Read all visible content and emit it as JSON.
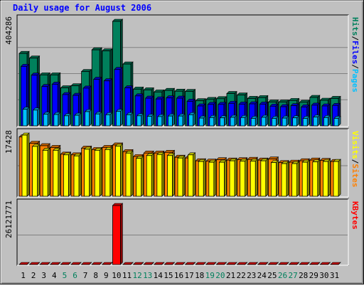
{
  "title": "Daily usage for August 2006",
  "colors": {
    "frame_bg": "#c0c0c0",
    "panel_bg": "#c0c0c0",
    "title": "#0000ff",
    "hits": "#00805c",
    "files": "#0000ff",
    "pages": "#00c0ff",
    "visits": "#ffff00",
    "sites": "#ff8000",
    "kbytes": "#ff0000",
    "weekday": "#000000",
    "weekend": "#00805c",
    "slash": "#000000"
  },
  "chart_data": [
    {
      "type": "bar",
      "panel": "hits-files-pages",
      "ymax_label": "404286",
      "ylim": [
        0,
        404286
      ],
      "legend": [
        "Pages",
        "Files",
        "Hits"
      ],
      "x": [
        1,
        2,
        3,
        4,
        5,
        6,
        7,
        8,
        9,
        10,
        11,
        12,
        13,
        14,
        15,
        16,
        17,
        18,
        19,
        20,
        21,
        22,
        23,
        24,
        25,
        26,
        27,
        28,
        29,
        30,
        31
      ],
      "series": [
        {
          "name": "Hits",
          "values": [
            280000,
            262000,
            197000,
            197000,
            147000,
            155000,
            210000,
            294000,
            290000,
            404286,
            239000,
            142000,
            139000,
            131000,
            137000,
            134000,
            133000,
            97000,
            102000,
            105000,
            125000,
            119000,
            106000,
            109000,
            92000,
            92000,
            98000,
            91000,
            110000,
            99000,
            106000
          ]
        },
        {
          "name": "Files",
          "values": [
            230000,
            196000,
            152000,
            161000,
            121000,
            118000,
            146000,
            180000,
            174000,
            218000,
            147000,
            116000,
            107000,
            104000,
            108000,
            107000,
            95000,
            77000,
            83000,
            83000,
            87000,
            84000,
            85000,
            84000,
            76000,
            74000,
            78000,
            73000,
            80000,
            77000,
            79000
          ]
        },
        {
          "name": "Pages",
          "values": [
            64000,
            61000,
            45000,
            44000,
            39000,
            41000,
            55000,
            46000,
            43000,
            56000,
            43000,
            39000,
            37000,
            36000,
            38000,
            38000,
            43000,
            30000,
            32000,
            31000,
            33000,
            32000,
            29000,
            33000,
            29000,
            30000,
            31000,
            29000,
            34000,
            32000,
            29000
          ]
        }
      ]
    },
    {
      "type": "bar",
      "panel": "sites-visits",
      "ymax_label": "17428",
      "ylim": [
        0,
        17428
      ],
      "legend": [
        "Sites",
        "Visits"
      ],
      "x": [
        1,
        2,
        3,
        4,
        5,
        6,
        7,
        8,
        9,
        10,
        11,
        12,
        13,
        14,
        15,
        16,
        17,
        18,
        19,
        20,
        21,
        22,
        23,
        24,
        25,
        26,
        27,
        28,
        29,
        30,
        31
      ],
      "series": [
        {
          "name": "Sites",
          "values": [
            16900,
            15100,
            14400,
            13900,
            12000,
            11800,
            13700,
            13300,
            13900,
            14600,
            12700,
            11300,
            12300,
            12300,
            12500,
            11100,
            10900,
            10100,
            10000,
            10400,
            10300,
            10400,
            10500,
            10300,
            10600,
            9600,
            9700,
            10100,
            10300,
            10200,
            9900
          ]
        },
        {
          "name": "Visits",
          "values": [
            17428,
            14200,
            13100,
            13100,
            11800,
            11500,
            13400,
            13100,
            13300,
            14300,
            12300,
            10800,
            11600,
            11900,
            11600,
            10900,
            11800,
            9900,
            9700,
            9700,
            10100,
            10000,
            10000,
            10100,
            9600,
            9300,
            9300,
            9700,
            9800,
            9900,
            9900
          ]
        }
      ]
    },
    {
      "type": "bar",
      "panel": "kbytes",
      "ymax_label": "26121771",
      "ylim": [
        0,
        26121771
      ],
      "legend": [
        "KBytes"
      ],
      "x": [
        1,
        2,
        3,
        4,
        5,
        6,
        7,
        8,
        9,
        10,
        11,
        12,
        13,
        14,
        15,
        16,
        17,
        18,
        19,
        20,
        21,
        22,
        23,
        24,
        25,
        26,
        27,
        28,
        29,
        30,
        31
      ],
      "weekend_days": [
        5,
        6,
        12,
        13,
        19,
        20,
        26,
        27
      ],
      "series": [
        {
          "name": "KBytes",
          "values": [
            14300,
            13700,
            11000,
            11000,
            10100,
            11100,
            10800,
            18500,
            23100,
            26121771,
            19300,
            10500,
            14000,
            8800,
            8800,
            8800,
            6900,
            5200,
            7800,
            7000,
            11600,
            9700,
            8400,
            10600,
            8600,
            10700,
            8500,
            10500,
            7500,
            7600,
            10000
          ]
        }
      ]
    }
  ]
}
